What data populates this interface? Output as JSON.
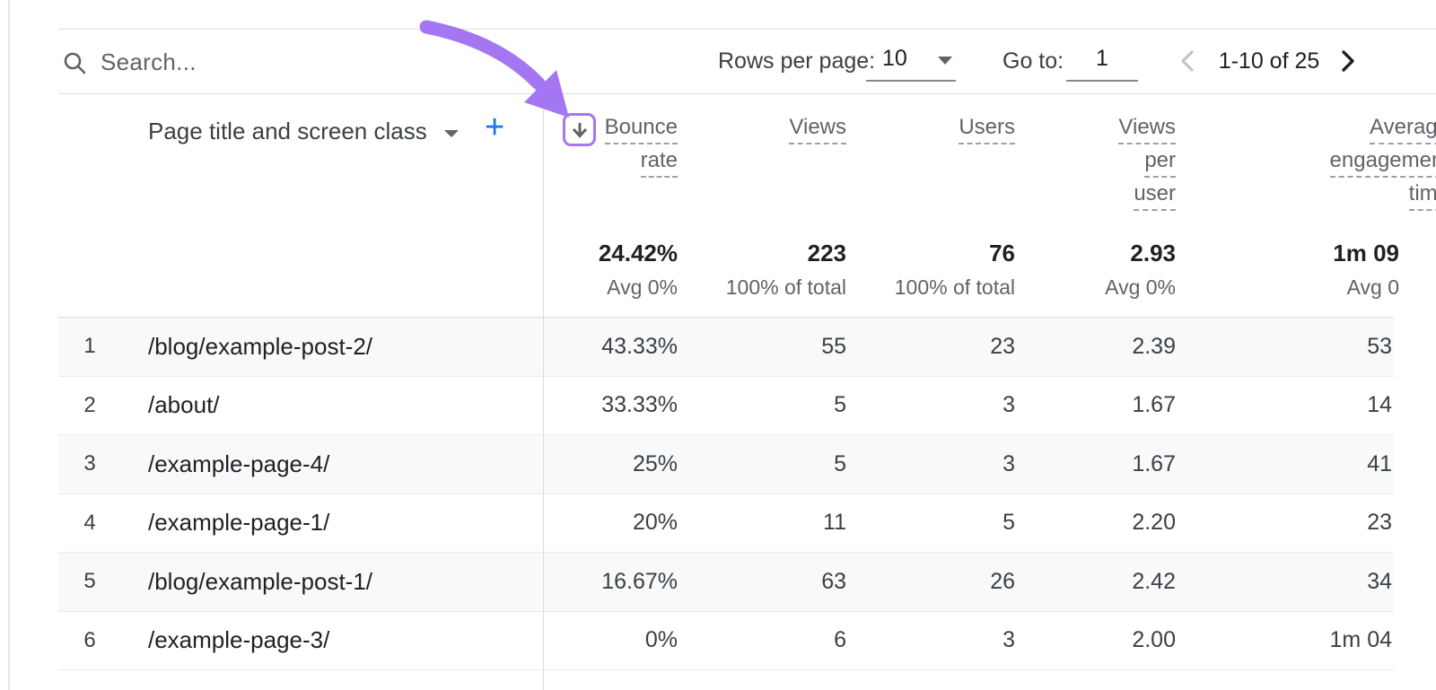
{
  "toolbar": {
    "search_placeholder": "Search...",
    "rows_per_page_label": "Rows per page:",
    "rows_per_page_value": "10",
    "go_to_label": "Go to:",
    "go_to_value": "1",
    "range_text": "1-10 of 25"
  },
  "table": {
    "dimension_header": "Page title and screen class",
    "add_metric_label": "+",
    "columns": [
      {
        "id": "bounce",
        "lines": [
          "Bounce",
          "rate"
        ],
        "summary": {
          "value": "24.42%",
          "sub": "Avg 0%"
        },
        "sorted": true
      },
      {
        "id": "views",
        "lines": [
          "Views"
        ],
        "summary": {
          "value": "223",
          "sub": "100% of total"
        },
        "sorted": false
      },
      {
        "id": "users",
        "lines": [
          "Users"
        ],
        "summary": {
          "value": "76",
          "sub": "100% of total"
        },
        "sorted": false
      },
      {
        "id": "vpu",
        "lines": [
          "Views",
          "per",
          "user"
        ],
        "summary": {
          "value": "2.93",
          "sub": "Avg 0%"
        },
        "sorted": false
      },
      {
        "id": "avg",
        "lines": [
          "Average",
          "engagement",
          "time"
        ],
        "summary": {
          "value": "1m 09",
          "sub": "Avg 0"
        },
        "sorted": false
      }
    ],
    "rows": [
      {
        "num": "1",
        "page": "/blog/example-post-2/",
        "values": [
          "43.33%",
          "55",
          "23",
          "2.39",
          "53"
        ]
      },
      {
        "num": "2",
        "page": "/about/",
        "values": [
          "33.33%",
          "5",
          "3",
          "1.67",
          "14"
        ]
      },
      {
        "num": "3",
        "page": "/example-page-4/",
        "values": [
          "25%",
          "5",
          "3",
          "1.67",
          "41"
        ]
      },
      {
        "num": "4",
        "page": "/example-page-1/",
        "values": [
          "20%",
          "11",
          "5",
          "2.20",
          "23"
        ]
      },
      {
        "num": "5",
        "page": "/blog/example-post-1/",
        "values": [
          "16.67%",
          "63",
          "26",
          "2.42",
          "34"
        ]
      },
      {
        "num": "6",
        "page": "/example-page-3/",
        "values": [
          "0%",
          "6",
          "3",
          "2.00",
          "1m 04"
        ]
      }
    ]
  },
  "annotation": {
    "purple": "#a476f3",
    "accent_blue": "#1a73e8",
    "highlight_target": "sort-descending-icon"
  }
}
